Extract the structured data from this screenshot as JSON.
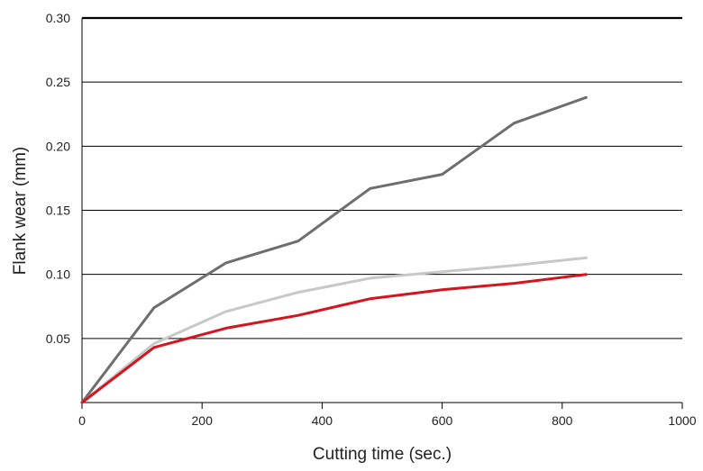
{
  "chart_data": {
    "type": "line",
    "title": "",
    "xlabel": "Cutting time (sec.)",
    "ylabel": "Flank wear (mm)",
    "xlim": [
      0,
      1000
    ],
    "ylim": [
      0,
      0.3
    ],
    "xticks": [
      0,
      200,
      400,
      600,
      800,
      1000
    ],
    "xtick_labels": [
      "0",
      "200",
      "400",
      "600",
      "800",
      "1000"
    ],
    "yticks": [
      0.05,
      0.1,
      0.15,
      0.2,
      0.25,
      0.3
    ],
    "ytick_labels": [
      "0.05",
      "0.10",
      "0.15",
      "0.20",
      "0.25",
      "0.30"
    ],
    "grid": "horizontal",
    "legend": "none",
    "series": [
      {
        "color": "#6e6e6e",
        "x": [
          0,
          120,
          240,
          360,
          480,
          600,
          720,
          840
        ],
        "y": [
          0,
          0.074,
          0.109,
          0.126,
          0.167,
          0.178,
          0.218,
          0.238
        ]
      },
      {
        "color": "#c8c8c8",
        "x": [
          0,
          120,
          240,
          360,
          480,
          600,
          720,
          840
        ],
        "y": [
          0,
          0.046,
          0.071,
          0.086,
          0.097,
          0.102,
          0.107,
          0.113
        ]
      },
      {
        "color": "#d7141e",
        "x": [
          0,
          120,
          240,
          360,
          480,
          600,
          720,
          840
        ],
        "y": [
          0,
          0.043,
          0.058,
          0.068,
          0.081,
          0.088,
          0.093,
          0.1
        ]
      }
    ]
  }
}
